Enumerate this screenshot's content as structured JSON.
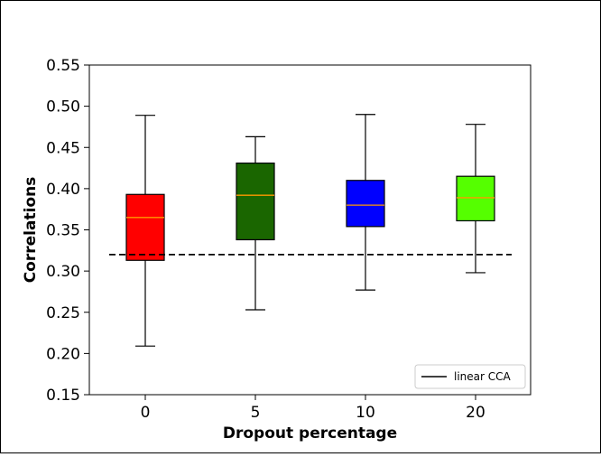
{
  "chart_data": {
    "type": "boxplot",
    "xlabel": "Dropout percentage",
    "ylabel": "Correlations",
    "ylim": [
      0.15,
      0.55
    ],
    "yticks": [
      "0.15",
      "0.20",
      "0.25",
      "0.30",
      "0.35",
      "0.40",
      "0.45",
      "0.50",
      "0.55"
    ],
    "categories": [
      "0",
      "5",
      "10",
      "20"
    ],
    "boxes": [
      {
        "category": "0",
        "whisker_low": 0.209,
        "q1": 0.313,
        "median": 0.365,
        "q3": 0.393,
        "whisker_high": 0.489,
        "color": "#ff0000"
      },
      {
        "category": "5",
        "whisker_low": 0.253,
        "q1": 0.338,
        "median": 0.392,
        "q3": 0.431,
        "whisker_high": 0.463,
        "color": "#1a6600"
      },
      {
        "category": "10",
        "whisker_low": 0.277,
        "q1": 0.354,
        "median": 0.38,
        "q3": 0.41,
        "whisker_high": 0.49,
        "color": "#0000ff"
      },
      {
        "category": "20",
        "whisker_low": 0.298,
        "q1": 0.361,
        "median": 0.389,
        "q3": 0.415,
        "whisker_high": 0.478,
        "color": "#55ff00"
      }
    ],
    "median_color": "#ff9900",
    "reference_line": {
      "label": "linear CCA",
      "value": 0.32,
      "style": "dashed",
      "color": "#000000"
    },
    "legend": {
      "placement": "lower-right",
      "entries": [
        "linear CCA"
      ]
    },
    "grid": false
  }
}
